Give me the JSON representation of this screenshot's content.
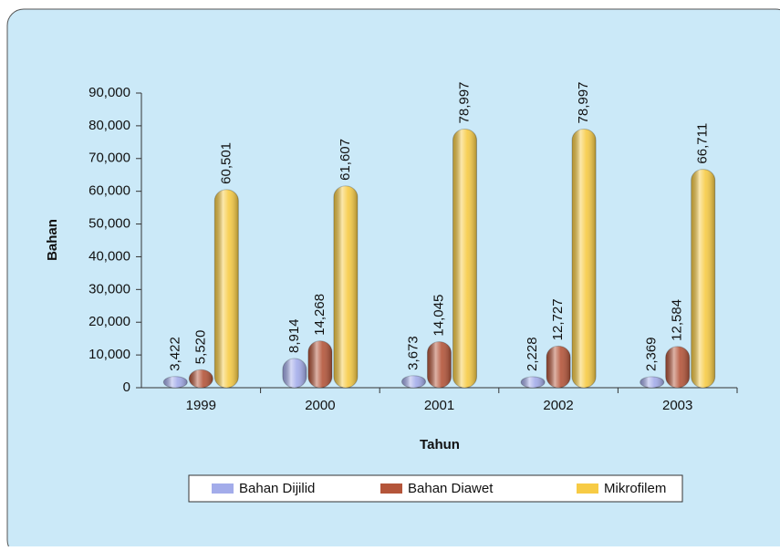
{
  "chart_data": {
    "type": "bar",
    "x_label": "Tahun",
    "y_label": "Bahan",
    "categories": [
      "1999",
      "2000",
      "2001",
      "2002",
      "2003"
    ],
    "series": [
      {
        "name": "Bahan Dijilid",
        "color": "#a3acea",
        "values": [
          3422,
          8914,
          3673,
          2228,
          2369
        ],
        "value_labels": [
          "3,422",
          "8,914",
          "3,673",
          "2,228",
          "2,369"
        ]
      },
      {
        "name": "Bahan Diawet",
        "color": "#b4553a",
        "values": [
          5520,
          14268,
          14045,
          12727,
          12584
        ],
        "value_labels": [
          "5,520",
          "14,268",
          "14,045",
          "12,727",
          "12,584"
        ]
      },
      {
        "name": "Mikrofilem",
        "color": "#f7cb45",
        "values": [
          60501,
          61607,
          78997,
          78997,
          66711
        ],
        "value_labels": [
          "60,501",
          "61,607",
          "78,997",
          "78,997",
          "66,711"
        ]
      }
    ],
    "ylim": [
      0,
      90000
    ],
    "yticks": [
      0,
      {
        "value": 10000,
        "label": "10,000"
      },
      {
        "value": 20000,
        "label": "20,000"
      },
      {
        "value": 30000,
        "label": "30,000"
      },
      {
        "value": 40000,
        "label": "40,000"
      },
      {
        "value": 50000,
        "label": "50,000"
      },
      {
        "value": 60000,
        "label": "60,000"
      },
      {
        "value": 70000,
        "label": "70,000"
      },
      {
        "value": 80000,
        "label": "80,000"
      },
      {
        "value": 90000,
        "label": "90,000"
      }
    ],
    "legend": "bottom"
  }
}
